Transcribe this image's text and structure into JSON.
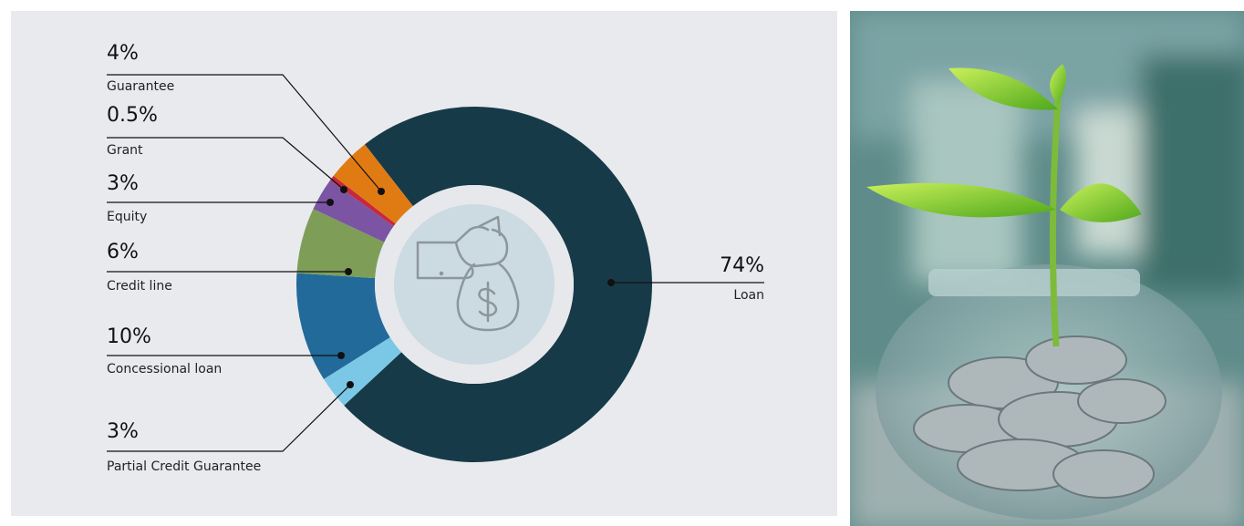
{
  "chart_data": {
    "type": "pie",
    "categories": [
      "Loan",
      "Partial Credit Guarantee",
      "Concessional loan",
      "Credit line",
      "Equity",
      "Grant",
      "Guarantee"
    ],
    "values": [
      74,
      3,
      10,
      6,
      3,
      0.5,
      4
    ],
    "value_labels": [
      "74%",
      "3%",
      "10%",
      "6%",
      "3%",
      "0.5%",
      "4%"
    ],
    "colors": [
      "#173a48",
      "#7ac8e6",
      "#216a9a",
      "#7e9e58",
      "#7b54a4",
      "#c8283c",
      "#e07b14"
    ]
  }
}
